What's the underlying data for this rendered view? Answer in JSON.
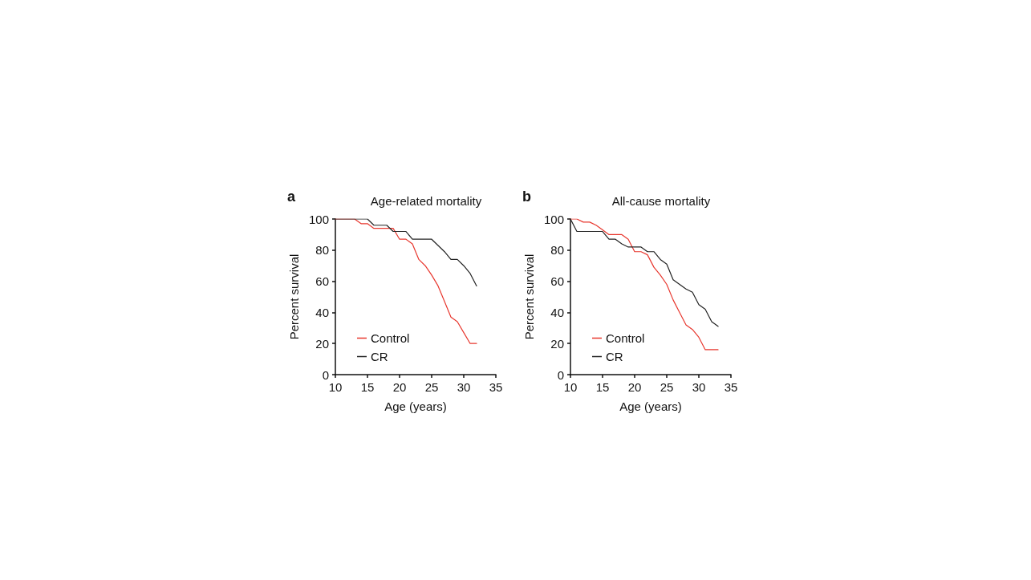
{
  "chart_data": [
    {
      "type": "line",
      "title": "Age-related mortality",
      "annotations": [
        "a"
      ],
      "xlabel": "Age (years)",
      "ylabel": "Percent survival",
      "xlim": [
        10,
        35
      ],
      "xticks": [
        10,
        15,
        20,
        25,
        30,
        35
      ],
      "ylim": [
        0,
        100
      ],
      "yticks": [
        0,
        20,
        40,
        60,
        80,
        100
      ],
      "grid": false,
      "legend": "bottom left",
      "marker": "none",
      "line_style": "solid",
      "series": [
        {
          "name": "Control",
          "color": "#e8382f",
          "x": [
            10,
            13,
            14,
            15,
            16,
            17,
            18,
            19,
            20,
            21,
            22,
            23,
            24,
            25,
            26,
            27,
            28,
            29,
            30,
            31,
            32
          ],
          "values": [
            100,
            100,
            97,
            97,
            94,
            94,
            94,
            94,
            87,
            87,
            84,
            74,
            70,
            64,
            57,
            47,
            37,
            34,
            27,
            20,
            20
          ]
        },
        {
          "name": "CR",
          "color": "#222222",
          "x": [
            10,
            15,
            16,
            17,
            18,
            19,
            20,
            21,
            22,
            23,
            24,
            25,
            26,
            27,
            28,
            29,
            30,
            31,
            32
          ],
          "values": [
            100,
            100,
            96,
            96,
            96,
            92,
            92,
            92,
            87,
            87,
            87,
            87,
            83,
            79,
            74,
            74,
            70,
            65,
            57
          ]
        }
      ]
    },
    {
      "type": "line",
      "title": "All-cause mortality",
      "annotations": [
        "b"
      ],
      "xlabel": "Age (years)",
      "ylabel": "Percent survival",
      "xlim": [
        10,
        35
      ],
      "xticks": [
        10,
        15,
        20,
        25,
        30,
        35
      ],
      "ylim": [
        0,
        100
      ],
      "yticks": [
        0,
        20,
        40,
        60,
        80,
        100
      ],
      "grid": false,
      "legend": "bottom left",
      "marker": "none",
      "line_style": "solid",
      "series": [
        {
          "name": "Control",
          "color": "#e8382f",
          "x": [
            10,
            11,
            12,
            13,
            14,
            15,
            16,
            17,
            18,
            19,
            20,
            21,
            22,
            23,
            24,
            25,
            26,
            27,
            28,
            29,
            30,
            31,
            33
          ],
          "values": [
            100,
            100,
            98,
            98,
            96,
            93,
            90,
            90,
            90,
            87,
            79,
            79,
            77,
            69,
            64,
            58,
            48,
            40,
            32,
            29,
            24,
            16,
            16
          ]
        },
        {
          "name": "CR",
          "color": "#222222",
          "x": [
            10,
            11,
            15,
            16,
            17,
            18,
            19,
            20,
            21,
            22,
            23,
            24,
            25,
            26,
            27,
            28,
            29,
            30,
            31,
            32,
            33
          ],
          "values": [
            100,
            92,
            92,
            87,
            87,
            84,
            82,
            82,
            82,
            79,
            79,
            74,
            71,
            61,
            58,
            55,
            53,
            45,
            42,
            34,
            31
          ]
        }
      ]
    }
  ]
}
